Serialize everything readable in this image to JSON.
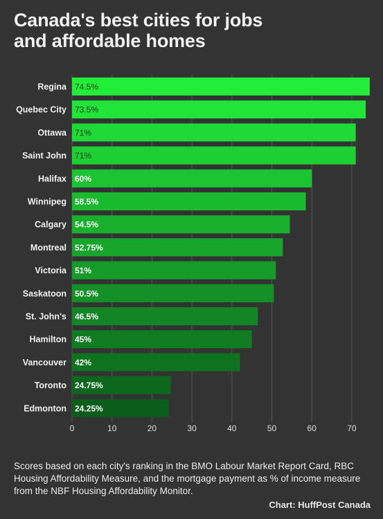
{
  "title_lines": [
    "Canada's best cities for jobs",
    "and affordable homes"
  ],
  "footnote": "Scores based on each city's ranking in the BMO Labour Market Report Card, RBC Housing Affordability Measure, and the mortgage payment as % of income measure from the NBF Housing Affordability Monitor.",
  "credit": "Chart: HuffPost Canada",
  "colors": {
    "background": "#333333",
    "gridline": "#555555",
    "bar_top": "#22ee3a",
    "bar_bottom": "#0b5d1b",
    "label_dark": "#1a3a1a",
    "label_light": "#ffffff"
  },
  "chart_data": {
    "type": "bar",
    "orientation": "horizontal",
    "categories": [
      "Regina",
      "Quebec City",
      "Ottawa",
      "Saint John",
      "Halifax",
      "Winnipeg",
      "Calgary",
      "Montreal",
      "Victoria",
      "Saskatoon",
      "St. John's",
      "Hamilton",
      "Vancouver",
      "Toronto",
      "Edmonton"
    ],
    "values": [
      74.5,
      73.5,
      71,
      71,
      60,
      58.5,
      54.5,
      52.75,
      51,
      50.5,
      46.5,
      45,
      42,
      24.75,
      24.25
    ],
    "value_labels": [
      "74.5%",
      "73.5%",
      "71%",
      "71%",
      "60%",
      "58.5%",
      "54.5%",
      "52.75%",
      "51%",
      "50.5%",
      "46.5%",
      "45%",
      "42%",
      "24.75%",
      "24.25%"
    ],
    "x_ticks": [
      0,
      10,
      20,
      30,
      40,
      50,
      60,
      70
    ],
    "xlim": [
      0,
      75
    ],
    "grid": "vertical",
    "legend": "none"
  }
}
